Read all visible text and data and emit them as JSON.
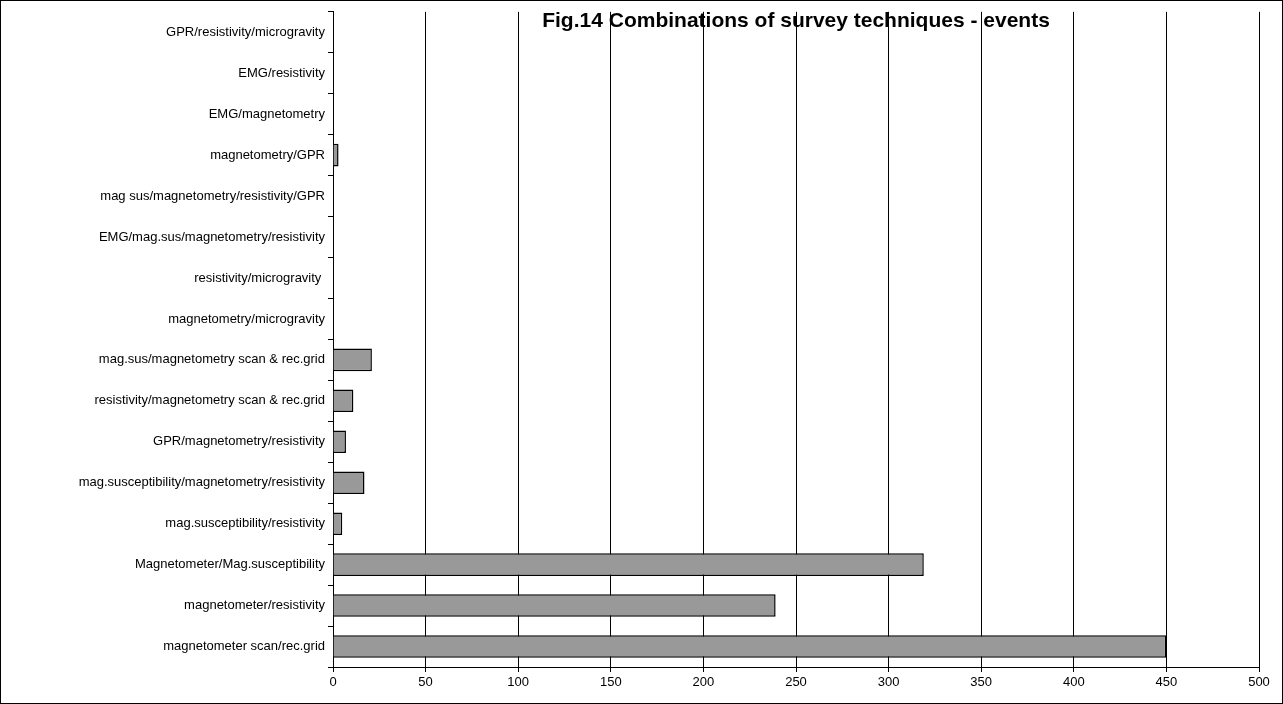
{
  "chart_data": {
    "type": "bar",
    "orientation": "horizontal",
    "title": "Fig.14 Combinations of survey techniques - events",
    "categories": [
      "GPR/resistivity/microgravity",
      "EMG/resistivity",
      "EMG/magnetometry",
      "magnetometry/GPR",
      "mag sus/magnetometry/resistivity/GPR",
      "EMG/mag.sus/magnetometry/resistivity",
      "resistivity/microgravity ",
      "magnetometry/microgravity",
      "mag.sus/magnetometry scan & rec.grid",
      "resistivity/magnetometry scan & rec.grid",
      "GPR/magnetometry/resistivity",
      "mag.susceptibility/magnetometry/resistivity",
      "mag.susceptibility/resistivity",
      "Magnetometer/Mag.susceptibility",
      "magnetometer/resistivity",
      "magnetometer scan/rec.grid"
    ],
    "values": [
      0,
      0,
      0,
      3,
      0,
      0,
      0,
      0,
      21,
      11,
      7,
      17,
      5,
      319,
      239,
      450
    ],
    "color": "#999999",
    "xlim": [
      0,
      500
    ],
    "xticks": [
      0,
      50,
      100,
      150,
      200,
      250,
      300,
      350,
      400,
      450,
      500
    ],
    "grid": "x",
    "legend": false
  }
}
